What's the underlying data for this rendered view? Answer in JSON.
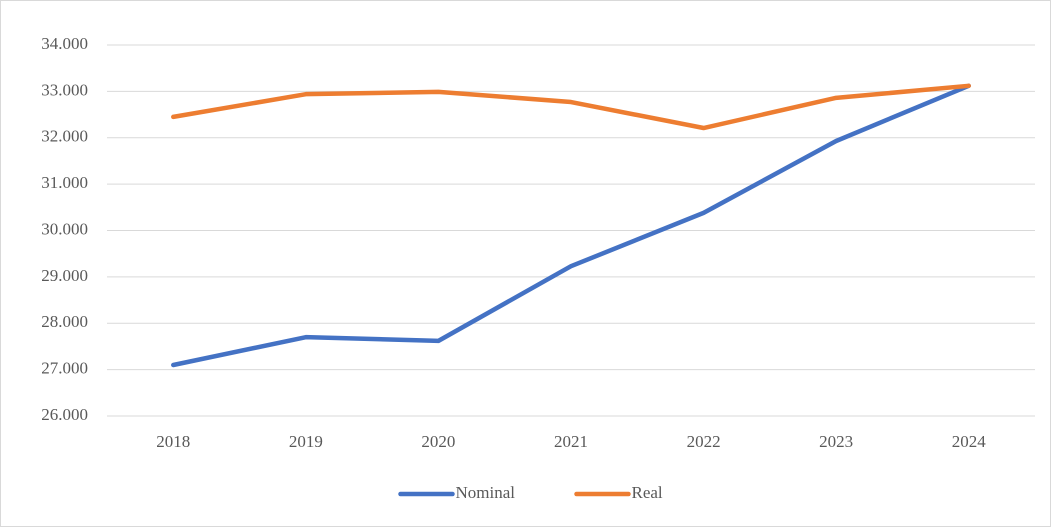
{
  "chart_data": {
    "type": "line",
    "categories": [
      "2018",
      "2019",
      "2020",
      "2021",
      "2022",
      "2023",
      "2024"
    ],
    "series": [
      {
        "name": "Nominal",
        "color": "#4472c4",
        "values": [
          27100,
          27700,
          27620,
          29230,
          30380,
          31930,
          33120
        ]
      },
      {
        "name": "Real",
        "color": "#ed7d31",
        "values": [
          32450,
          32940,
          32990,
          32770,
          32210,
          32860,
          33120
        ]
      }
    ],
    "ylim": [
      26000,
      34000
    ],
    "yticks": [
      {
        "value": 26000,
        "label": "26.000"
      },
      {
        "value": 27000,
        "label": "27.000"
      },
      {
        "value": 28000,
        "label": "28.000"
      },
      {
        "value": 29000,
        "label": "29.000"
      },
      {
        "value": 30000,
        "label": "30.000"
      },
      {
        "value": 31000,
        "label": "31.000"
      },
      {
        "value": 32000,
        "label": "32.000"
      },
      {
        "value": 33000,
        "label": "33.000"
      },
      {
        "value": 34000,
        "label": "34.000"
      }
    ],
    "grid": true,
    "legend": "bottom"
  }
}
